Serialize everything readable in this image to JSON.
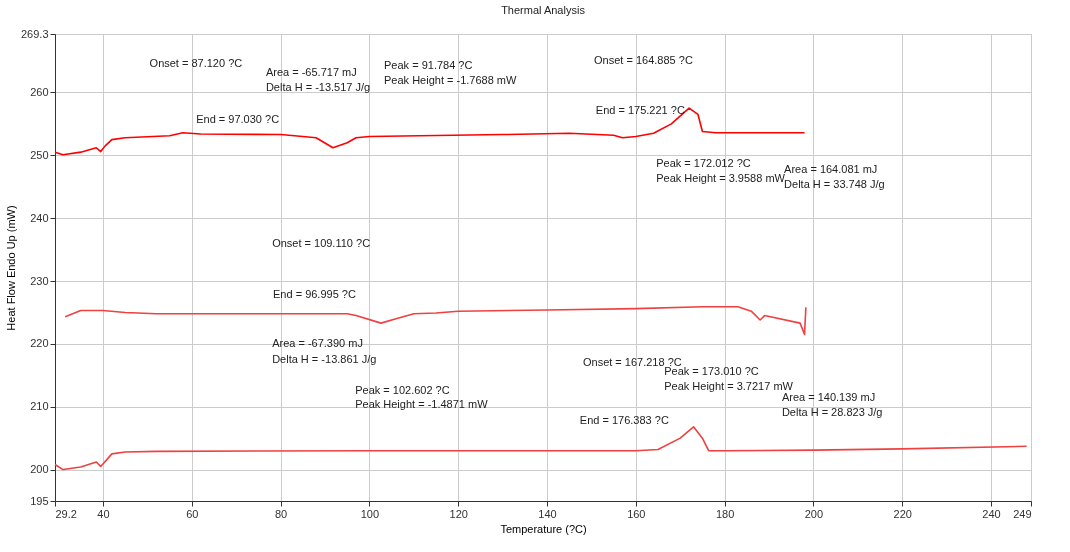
{
  "chart_data": {
    "type": "line",
    "title": "Thermal Analysis",
    "xlabel": "Temperature (?C)",
    "ylabel": "Heat Flow Endo Up (mW)",
    "xlim": [
      29.2,
      249
    ],
    "xticks": [
      29.2,
      40,
      60,
      80,
      100,
      120,
      140,
      160,
      180,
      200,
      220,
      240,
      249
    ],
    "ylim": [
      195,
      269.3
    ],
    "yticks": [
      195,
      200,
      210,
      220,
      230,
      240,
      250,
      260,
      269.3
    ],
    "grid": true,
    "marker": "none",
    "line_style": "solid",
    "series": [
      {
        "color": "#ff0000",
        "x": [
          29.2,
          31,
          35,
          38.5,
          39.5,
          40.5,
          42,
          45,
          55,
          58,
          62,
          80,
          85,
          88,
          91.8,
          95,
          97,
          100,
          130,
          145,
          155,
          157,
          160,
          164,
          168,
          172,
          174,
          175,
          178,
          198
        ],
        "values": [
          250.5,
          250.1,
          250.5,
          251.2,
          250.6,
          251.5,
          252.5,
          252.8,
          253.1,
          253.6,
          253.4,
          253.3,
          253.0,
          252.8,
          251.2,
          252.0,
          252.8,
          253.0,
          253.3,
          253.5,
          253.2,
          252.8,
          253.0,
          253.5,
          255.0,
          257.5,
          256.5,
          253.8,
          253.6,
          253.6
        ]
      },
      {
        "color": "#f04040",
        "x": [
          31.5,
          35,
          40,
          45,
          52,
          95,
          97,
          102.6,
          106,
          110,
          115,
          120,
          140,
          160,
          175,
          183,
          186,
          188,
          189,
          197,
          198,
          198.3
        ],
        "values": [
          224.3,
          225.3,
          225.3,
          225.0,
          224.8,
          224.8,
          224.5,
          223.3,
          224.0,
          224.8,
          224.9,
          225.2,
          225.4,
          225.6,
          225.9,
          225.9,
          225.2,
          223.8,
          224.5,
          223.3,
          221.5,
          225.8
        ]
      },
      {
        "color": "#f04040",
        "x": [
          29.2,
          31,
          35,
          38.5,
          39.5,
          42,
          45,
          52,
          100,
          160,
          165,
          170,
          173,
          175,
          176.4,
          180,
          200,
          220,
          248
        ],
        "values": [
          200.8,
          200.0,
          200.4,
          201.2,
          200.5,
          202.5,
          202.8,
          202.9,
          203.0,
          203.0,
          203.2,
          205.0,
          206.8,
          205.0,
          203.0,
          203.0,
          203.1,
          203.3,
          203.7
        ]
      }
    ],
    "annotations": [
      "Onset = 87.120 ?C",
      "Area = -65.717 mJ",
      "Delta H = -13.517 J/g",
      "Peak = 91.784 ?C",
      "Peak Height = -1.7688 mW",
      "End = 97.030 ?C",
      "Onset = 164.885 ?C",
      "End = 175.221 ?C",
      "Peak = 172.012 ?C",
      "Peak Height = 3.9588 mW",
      "Area = 164.081 mJ",
      "Delta H = 33.748 J/g",
      "Onset = 109.110 ?C",
      "End = 96.995 ?C",
      "Area = -67.390 mJ",
      "Delta H = -13.861 J/g",
      "Peak = 102.602 ?C",
      "Peak Height = -1.4871 mW",
      "Onset = 167.218 ?C",
      "Peak = 173.010 ?C",
      "Peak Height = 3.7217 mW",
      "Area = 140.139 mJ",
      "Delta H = 28.823 J/g",
      "End = 176.383 ?C"
    ]
  }
}
